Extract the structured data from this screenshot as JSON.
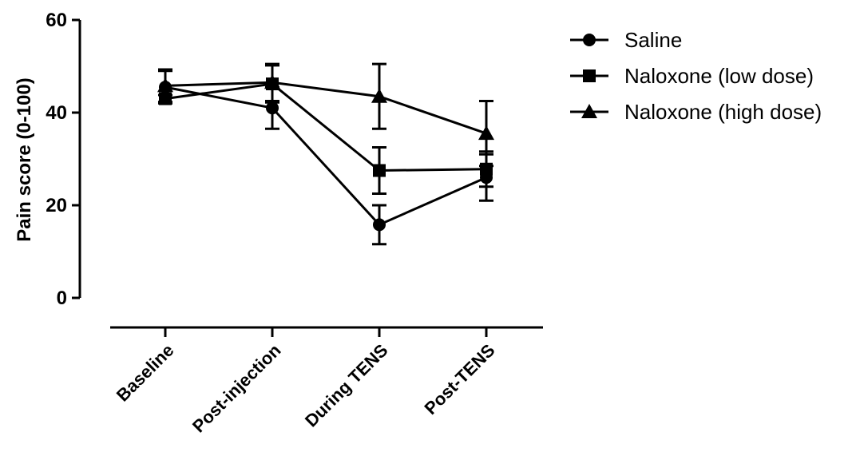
{
  "chart_data": {
    "type": "line",
    "ylabel": "Pain score  (0-100)",
    "xlabel": "",
    "ylim": [
      0,
      60
    ],
    "yticks": [
      0,
      20,
      40,
      60
    ],
    "categories": [
      "Baseline",
      "Post-injection",
      "During TENS",
      "Post-TENS"
    ],
    "legend_position": "top-right",
    "grid": false,
    "series": [
      {
        "name": "Saline",
        "marker": "circle",
        "values": [
          45.5,
          41,
          15.8,
          26
        ],
        "errors": [
          3.5,
          4.5,
          4.2,
          5
        ]
      },
      {
        "name": "Naloxone (low dose)",
        "marker": "square",
        "values": [
          43,
          46.2,
          27.5,
          27.8
        ],
        "errors": [
          0.8,
          4,
          5,
          3.8
        ]
      },
      {
        "name": "Naloxone (high dose)",
        "marker": "triangle",
        "values": [
          45.8,
          46.5,
          43.5,
          35.5
        ],
        "errors": [
          3.5,
          4,
          7,
          7
        ]
      }
    ]
  }
}
